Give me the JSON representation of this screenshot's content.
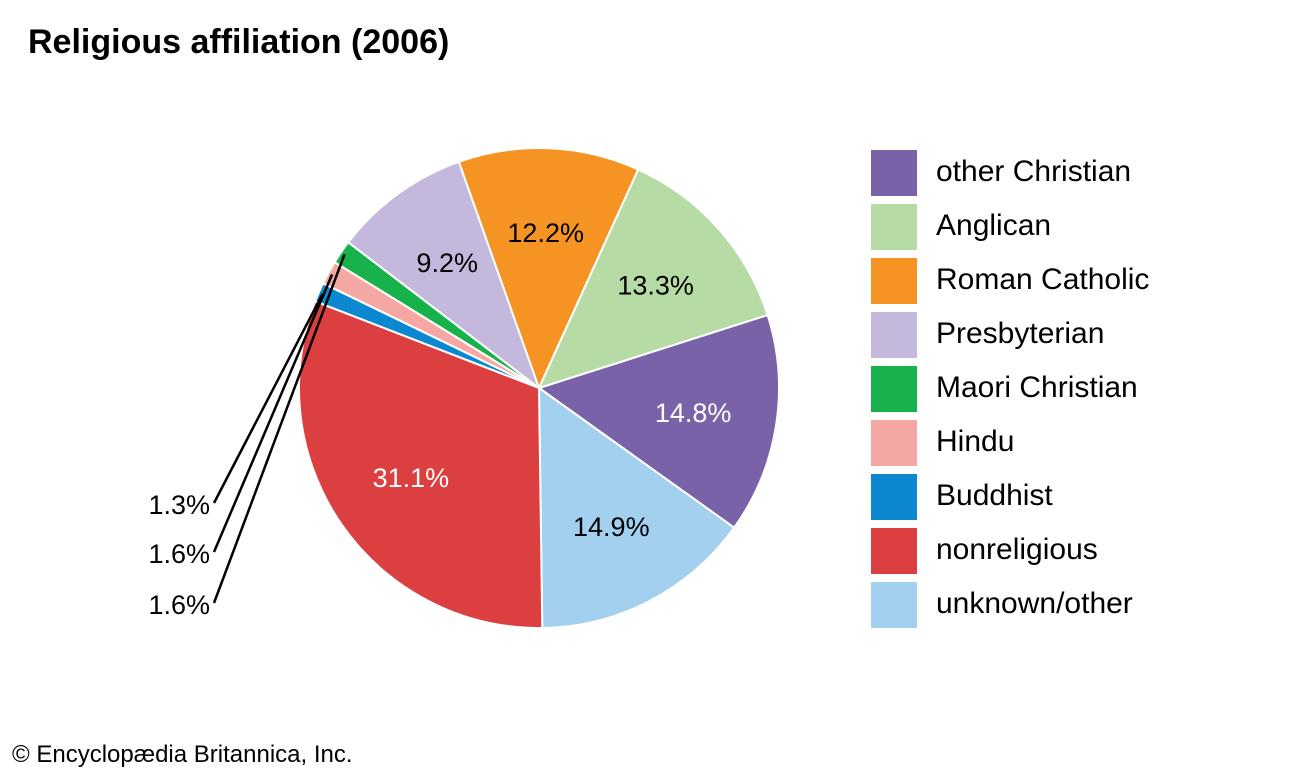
{
  "title": "Religious affiliation (2006)",
  "credit": "© Encyclopædia Britannica, Inc.",
  "chart_data": {
    "type": "pie",
    "title": "Religious affiliation (2006)",
    "legend_position": "right",
    "slices": [
      {
        "label": "other Christian",
        "value": 14.8,
        "display": "14.8%",
        "color": "#7a62a8",
        "text_color": "#ffffff"
      },
      {
        "label": "unknown/other",
        "value": 14.9,
        "display": "14.9%",
        "color": "#a2d0ee",
        "text_color": "#000000"
      },
      {
        "label": "nonreligious",
        "value": 31.1,
        "display": "31.1%",
        "color": "#db3f3f",
        "text_color": "#ffffff"
      },
      {
        "label": "Buddhist",
        "value": 1.3,
        "display": "1.3%",
        "color": "#0b88cf",
        "text_color": "#000000"
      },
      {
        "label": "Hindu",
        "value": 1.6,
        "display": "1.6%",
        "color": "#f5a8a3",
        "text_color": "#000000"
      },
      {
        "label": "Maori Christian",
        "value": 1.6,
        "display": "1.6%",
        "color": "#18b24c",
        "text_color": "#000000"
      },
      {
        "label": "Presbyterian",
        "value": 9.2,
        "display": "9.2%",
        "color": "#c4b8dc",
        "text_color": "#000000"
      },
      {
        "label": "Roman Catholic",
        "value": 12.2,
        "display": "12.2%",
        "color": "#f59423",
        "text_color": "#000000"
      },
      {
        "label": "Anglican",
        "value": 13.3,
        "display": "13.3%",
        "color": "#b7dba5",
        "text_color": "#000000"
      }
    ],
    "legend": [
      {
        "label": "other Christian",
        "color": "#7a62a8"
      },
      {
        "label": "Anglican",
        "color": "#b7dba5"
      },
      {
        "label": "Roman Catholic",
        "color": "#f59423"
      },
      {
        "label": "Presbyterian",
        "color": "#c4b8dc"
      },
      {
        "label": "Maori Christian",
        "color": "#18b24c"
      },
      {
        "label": "Hindu",
        "color": "#f5a8a3"
      },
      {
        "label": "Buddhist",
        "color": "#0b88cf"
      },
      {
        "label": "nonreligious",
        "color": "#db3f3f"
      },
      {
        "label": "unknown/other",
        "color": "#a2d0ee"
      }
    ]
  }
}
